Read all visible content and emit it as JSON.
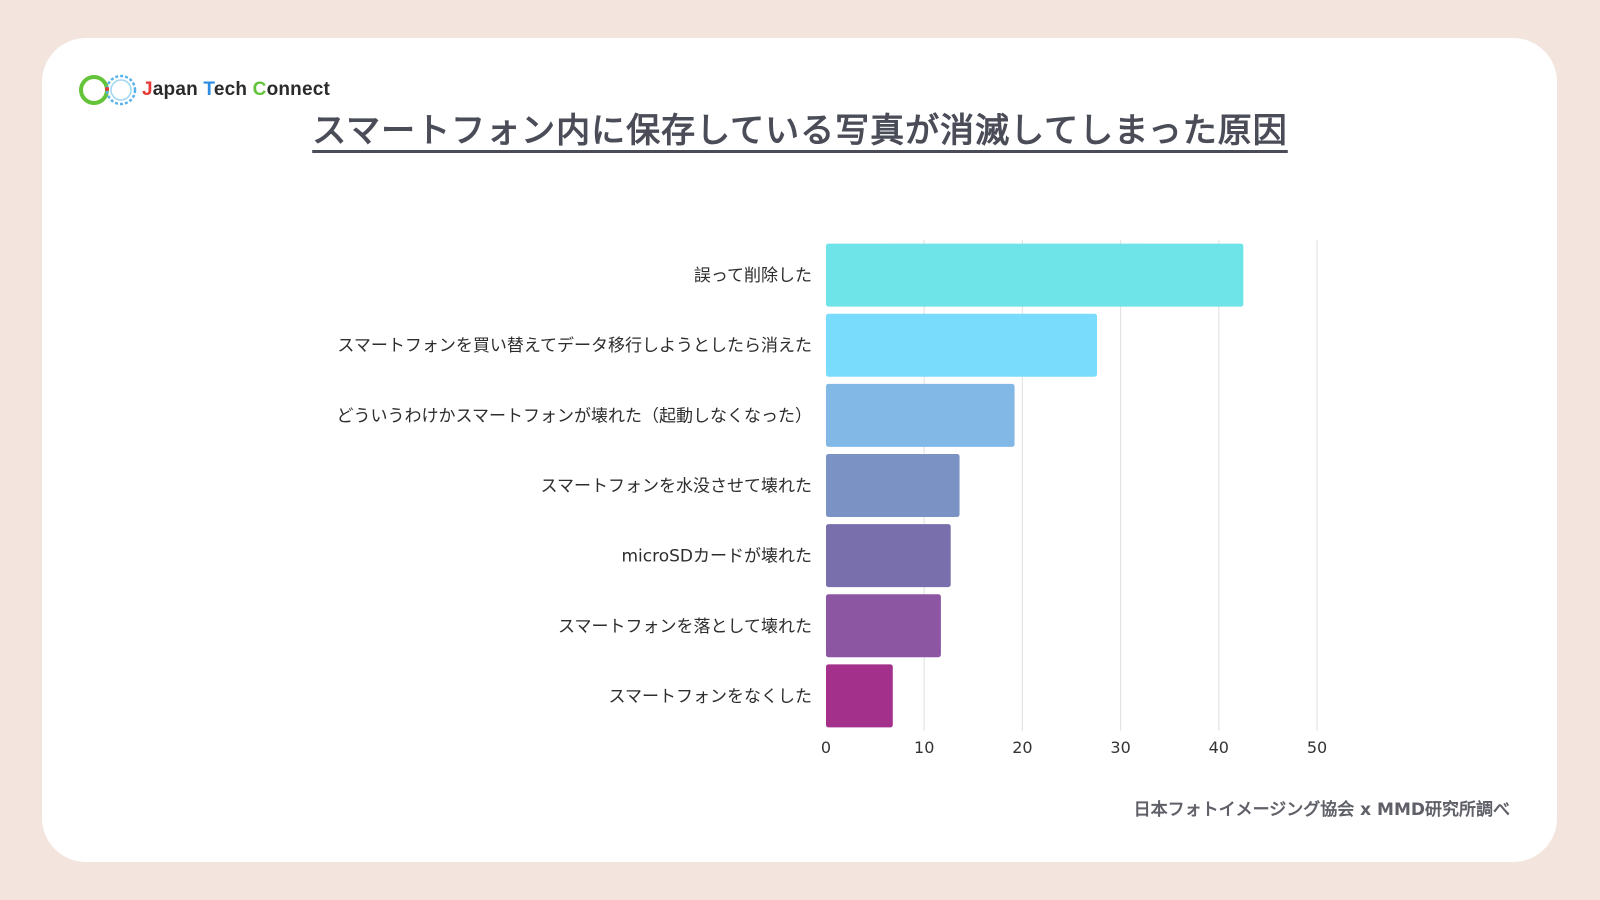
{
  "brand": {
    "parts": [
      {
        "initial": "J",
        "rest": "apan "
      },
      {
        "initial": "T",
        "rest": "ech "
      },
      {
        "initial": "C",
        "rest": "onnect"
      }
    ],
    "colors": {
      "j": "#e53935",
      "t": "#2e8de0",
      "c": "#63c43a",
      "ring_green": "#63c43a",
      "ring_blue": "#5ab4ea"
    }
  },
  "title": "スマートフォン内に保存している写真が消滅してしまった原因",
  "source": "日本フォトイメージング協会 x MMD研究所調べ",
  "chart_data": {
    "type": "bar",
    "orientation": "horizontal",
    "categories": [
      "誤って削除した",
      "スマートフォンを買い替えてデータ移行しようとしたら消えた",
      "どういうわけかスマートフォンが壊れた（起動しなくなった）",
      "スマートフォンを水没させて壊れた",
      "microSDカードが壊れた",
      "スマートフォンを落として壊れた",
      "スマートフォンをなくした"
    ],
    "values": [
      42.5,
      27.6,
      19.2,
      13.6,
      12.7,
      11.7,
      6.8
    ],
    "colors": [
      "#6ee4e8",
      "#7adcfc",
      "#82b8e6",
      "#7b93c4",
      "#7a6fad",
      "#8d56a3",
      "#a3308a"
    ],
    "xlim": [
      0,
      50
    ],
    "xticks": [
      0,
      10,
      20,
      30,
      40,
      50
    ],
    "grid": true,
    "legend": "none"
  }
}
